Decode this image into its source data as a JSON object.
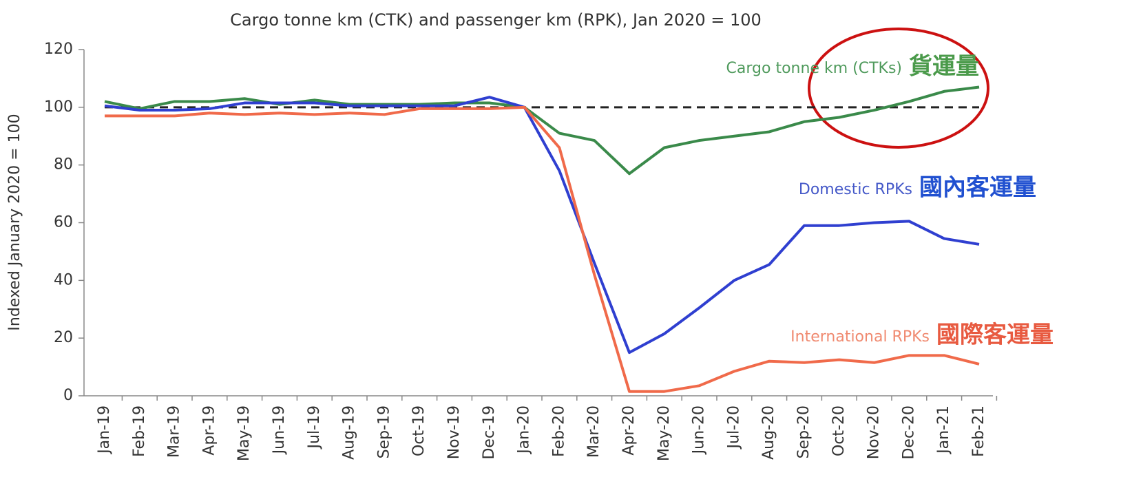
{
  "chart_data": {
    "type": "line",
    "title": "Cargo tonne km (CTK) and passenger km (RPK), Jan 2020 = 100",
    "y_label": "Indexed January 2020 = 100",
    "categories": [
      "Jan-19",
      "Feb-19",
      "Mar-19",
      "Apr-19",
      "May-19",
      "Jun-19",
      "Jul-19",
      "Aug-19",
      "Sep-19",
      "Oct-19",
      "Nov-19",
      "Dec-19",
      "Jan-20",
      "Feb-20",
      "Mar-20",
      "Apr-20",
      "May-20",
      "Jun-20",
      "Jul-20",
      "Aug-20",
      "Sep-20",
      "Oct-20",
      "Nov-20",
      "Dec-20",
      "Jan-21",
      "Feb-21"
    ],
    "series": [
      {
        "name": "Cargo tonne km (CTKs)",
        "color": "#3a8a4a",
        "label_color": "#4f9a5c",
        "values": [
          102,
          99.5,
          102,
          102,
          103,
          101,
          102.5,
          101,
          101,
          101,
          101.5,
          101.5,
          100,
          91,
          88.5,
          77,
          86,
          88.5,
          90,
          91.5,
          95,
          96.5,
          99,
          102,
          105.5,
          107
        ]
      },
      {
        "name": "Domestic RPKs",
        "color": "#2f3fd0",
        "label_color": "#4458c8",
        "values": [
          100.5,
          99,
          99,
          99.5,
          101.5,
          101.5,
          101.5,
          100.5,
          100.5,
          100.5,
          100.5,
          103.5,
          100,
          78,
          46,
          15,
          21.5,
          30.5,
          40,
          45.5,
          59,
          59,
          60,
          60.5,
          54.5,
          52.5
        ]
      },
      {
        "name": "International RPKs",
        "color": "#f06a4a",
        "label_color": "#f08a70",
        "values": [
          97,
          97,
          97,
          98,
          97.5,
          98,
          97.5,
          98,
          97.5,
          99.5,
          99.5,
          99.5,
          100,
          86,
          42,
          1.5,
          1.5,
          3.5,
          8.5,
          12,
          11.5,
          12.5,
          11.5,
          14,
          14,
          11
        ]
      }
    ],
    "annotations": [
      {
        "text": "貨運量",
        "color": "#4a9a4a"
      },
      {
        "text": "國內客運量",
        "color": "#2050d0"
      },
      {
        "text": "國際客運量",
        "color": "#e85a40"
      }
    ],
    "reference_line": 100,
    "ylim": [
      0,
      120
    ],
    "yticks": [
      0,
      20,
      40,
      60,
      80,
      100,
      120
    ]
  }
}
